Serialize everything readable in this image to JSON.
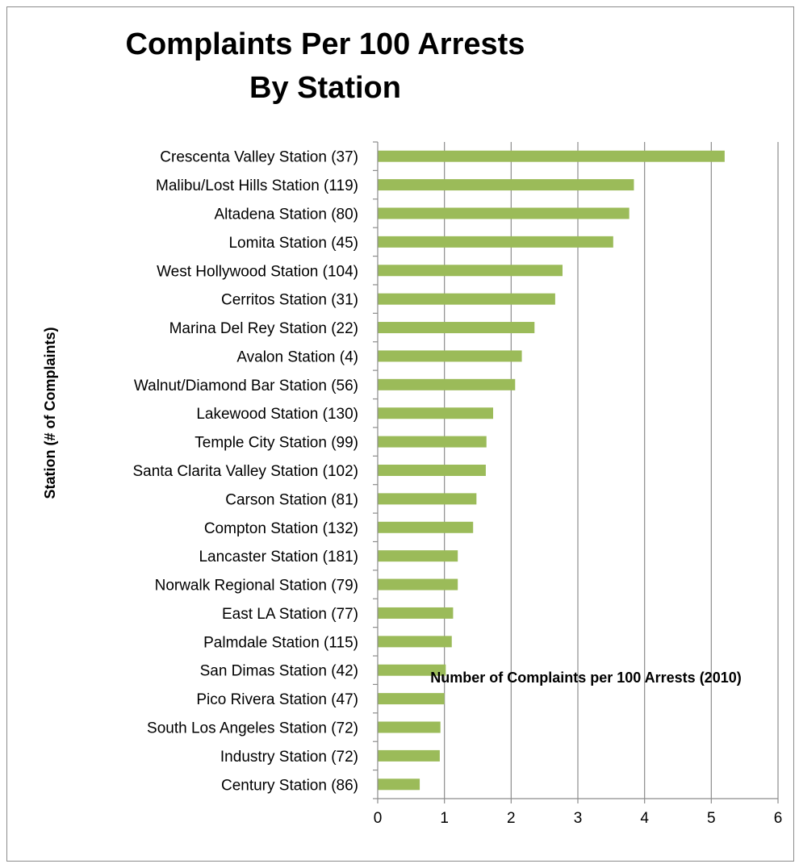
{
  "chart_data": {
    "type": "bar",
    "orientation": "horizontal",
    "title_lines": [
      "Complaints Per 100 Arrests",
      "By Station"
    ],
    "xlabel": "Number of Complaints per 100 Arrests (2010)",
    "ylabel": "Station (# of Complaints)",
    "xlim": [
      0,
      6
    ],
    "xticks": [
      "0",
      "1",
      "2",
      "3",
      "4",
      "5",
      "6"
    ],
    "grid": true,
    "legend": "none",
    "bar_color": "#9BBB59",
    "categories": [
      "Crescenta Valley Station (37)",
      "Malibu/Lost Hills Station (119)",
      "Altadena Station (80)",
      "Lomita Station (45)",
      "West Hollywood Station (104)",
      "Cerritos Station (31)",
      "Marina Del Rey Station (22)",
      "Avalon Station (4)",
      "Walnut/Diamond Bar Station (56)",
      "Lakewood Station (130)",
      "Temple City Station (99)",
      "Santa Clarita Valley Station (102)",
      "Carson Station (81)",
      "Compton Station (132)",
      "Lancaster Station (181)",
      "Norwalk Regional Station (79)",
      "East LA Station (77)",
      "Palmdale Station (115)",
      "San Dimas Station (42)",
      "Pico Rivera Station (47)",
      "South Los Angeles Station (72)",
      "Industry Station (72)",
      "Century Station (86)"
    ],
    "values": [
      5.2,
      3.84,
      3.77,
      3.53,
      2.77,
      2.66,
      2.35,
      2.16,
      2.06,
      1.73,
      1.63,
      1.62,
      1.48,
      1.43,
      1.2,
      1.2,
      1.13,
      1.11,
      1.02,
      1.0,
      0.94,
      0.93,
      0.63
    ]
  }
}
